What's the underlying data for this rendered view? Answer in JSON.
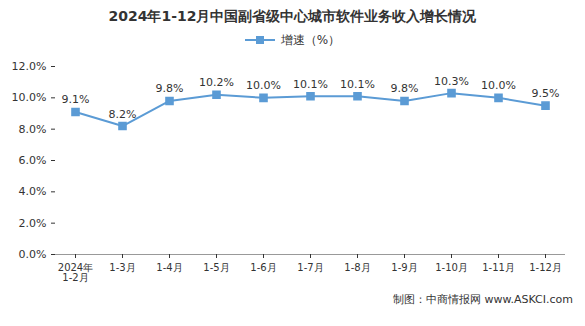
{
  "chart_data": {
    "type": "line",
    "title": "2024年1-12月中国副省级中心城市软件业务收入增长情况",
    "caption": "制图：中商情报网 www.ASKCI.com",
    "categories": [
      "2024年\n1-2月",
      "1-3月",
      "1-4月",
      "1-5月",
      "1-6月",
      "1-7月",
      "1-8月",
      "1-9月",
      "1-10月",
      "1-11月",
      "1-12月"
    ],
    "series": [
      {
        "name": "增速（%）",
        "color": "#5b9bd5",
        "marker": "square",
        "values": [
          9.1,
          8.2,
          9.8,
          10.2,
          10.0,
          10.1,
          10.1,
          9.8,
          10.3,
          10.0,
          9.5
        ],
        "value_labels": [
          "9.1%",
          "8.2%",
          "9.8%",
          "10.2%",
          "10.0%",
          "10.1%",
          "10.1%",
          "9.8%",
          "10.3%",
          "10.0%",
          "9.5%"
        ]
      }
    ],
    "ylim": [
      0,
      12
    ],
    "yticks": [
      {
        "value": 0,
        "label": "0.0%"
      },
      {
        "value": 2,
        "label": "2.0%"
      },
      {
        "value": 4,
        "label": "4.0%"
      },
      {
        "value": 6,
        "label": "6.0%"
      },
      {
        "value": 8,
        "label": "8.0%"
      },
      {
        "value": 10,
        "label": "10.0%"
      },
      {
        "value": 12,
        "label": "12.0%"
      }
    ],
    "grid": false,
    "data_labels": true,
    "legend": "top"
  }
}
